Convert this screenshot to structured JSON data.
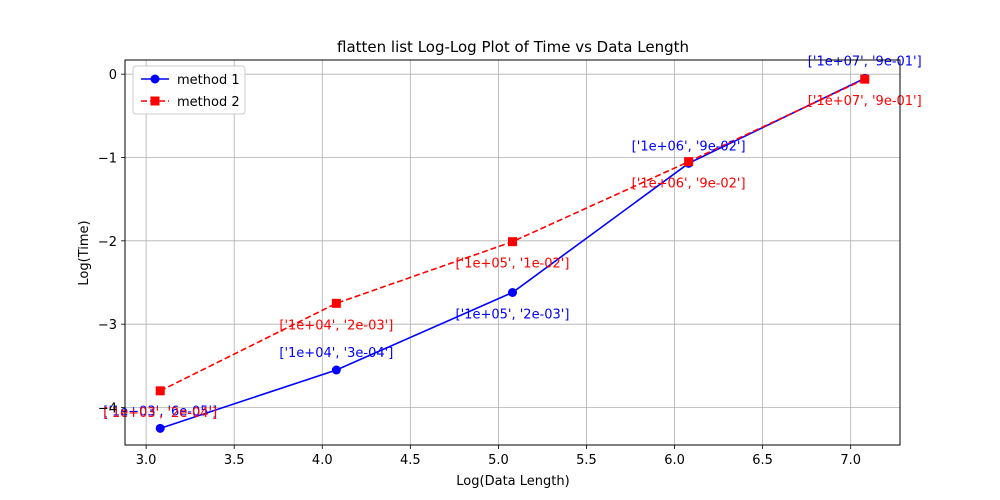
{
  "chart_data": {
    "type": "line",
    "title": "flatten list Log-Log Plot of Time vs Data Length",
    "xlabel": "Log(Data Length)",
    "ylabel": "Log(Time)",
    "xlim": [
      2.88,
      7.28
    ],
    "ylim": [
      -4.45,
      0.17
    ],
    "xticks": [
      3.0,
      3.5,
      4.0,
      4.5,
      5.0,
      5.5,
      6.0,
      6.5,
      7.0
    ],
    "xtick_labels": [
      "3.0",
      "3.5",
      "4.0",
      "4.5",
      "5.0",
      "5.5",
      "6.0",
      "6.5",
      "7.0"
    ],
    "yticks": [
      0,
      -1,
      -2,
      -3,
      -4
    ],
    "ytick_labels": [
      "0",
      "−1",
      "−2",
      "−3",
      "−4"
    ],
    "grid": true,
    "legend_position": "upper-left",
    "x": [
      3.08,
      4.08,
      5.08,
      6.08,
      7.08
    ],
    "series": [
      {
        "name": "method 1",
        "color": "#0000ff",
        "marker": "circle",
        "linestyle": "solid",
        "values": [
          -4.25,
          -3.55,
          -2.62,
          -1.07,
          -0.05
        ],
        "labels": [
          "['1e+03', '6e-05']",
          "['1e+04', '3e-04']",
          "['1e+05', '2e-03']",
          "['1e+06', '9e-02']",
          "['1e+07', '9e-01']"
        ],
        "label_side": [
          "above",
          "above",
          "below",
          "above",
          "above"
        ]
      },
      {
        "name": "method 2",
        "color": "#ff0000",
        "marker": "square",
        "linestyle": "dashed",
        "values": [
          -3.8,
          -2.75,
          -2.01,
          -1.05,
          -0.06
        ],
        "labels": [
          "['1e+03', '2e-04']",
          "['1e+04', '2e-03']",
          "['1e+05', '1e-02']",
          "['1e+06', '9e-02']",
          "['1e+07', '9e-01']"
        ],
        "label_side": [
          "below",
          "below",
          "below",
          "below",
          "below"
        ]
      }
    ]
  }
}
